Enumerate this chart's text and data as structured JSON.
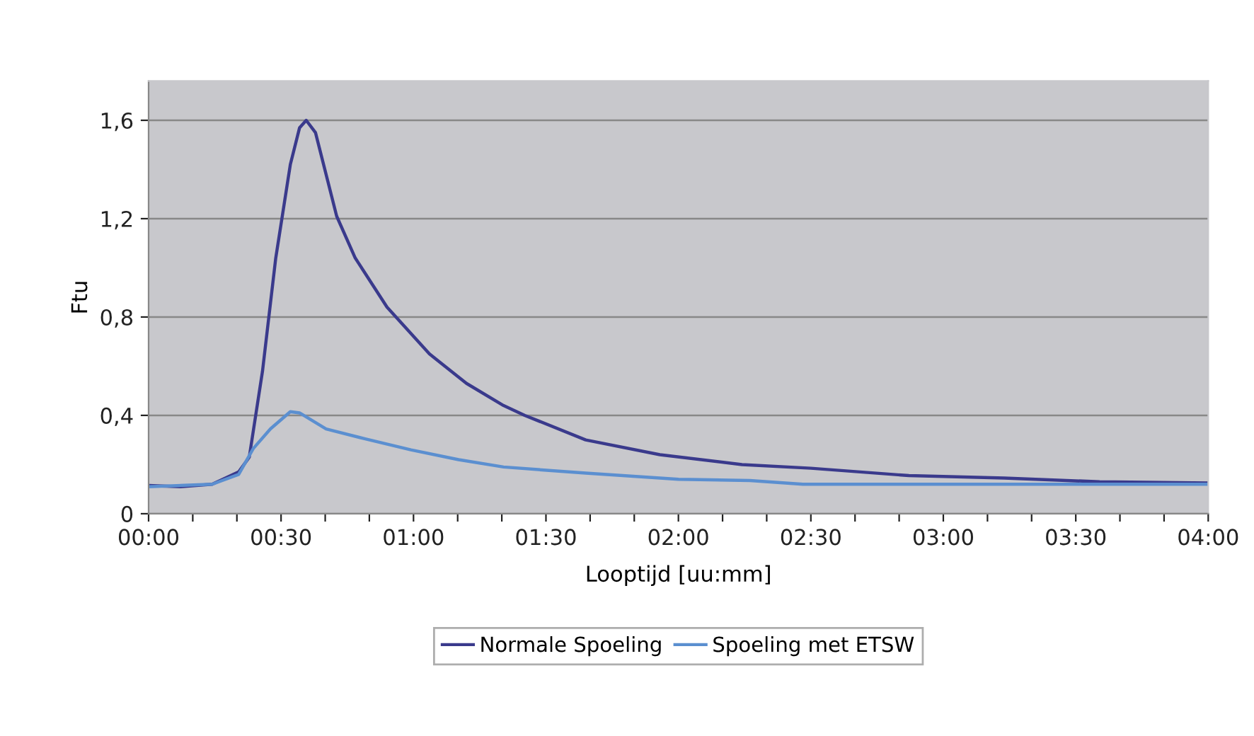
{
  "chart_data": {
    "type": "line",
    "xlabel": "Looptijd [uu:mm]",
    "ylabel": "Ftu",
    "xlim": [
      0,
      4
    ],
    "ylim": [
      0,
      1.76
    ],
    "xticks": [
      {
        "value": 0,
        "label": "00:00"
      },
      {
        "value": 0.1667,
        "label": null
      },
      {
        "value": 0.3333,
        "label": null
      },
      {
        "value": 0.5,
        "label": "00:30"
      },
      {
        "value": 0.6667,
        "label": null
      },
      {
        "value": 0.8333,
        "label": null
      },
      {
        "value": 1,
        "label": "01:00"
      },
      {
        "value": 1.1667,
        "label": null
      },
      {
        "value": 1.3333,
        "label": null
      },
      {
        "value": 1.5,
        "label": "01:30"
      },
      {
        "value": 1.6667,
        "label": null
      },
      {
        "value": 1.8333,
        "label": null
      },
      {
        "value": 2,
        "label": "02:00"
      },
      {
        "value": 2.1667,
        "label": null
      },
      {
        "value": 2.3333,
        "label": null
      },
      {
        "value": 2.5,
        "label": "02:30"
      },
      {
        "value": 2.6667,
        "label": null
      },
      {
        "value": 2.8333,
        "label": null
      },
      {
        "value": 3,
        "label": "03:00"
      },
      {
        "value": 3.1667,
        "label": null
      },
      {
        "value": 3.3333,
        "label": null
      },
      {
        "value": 3.5,
        "label": "03:30"
      },
      {
        "value": 3.6667,
        "label": null
      },
      {
        "value": 3.8333,
        "label": null
      },
      {
        "value": 4,
        "label": "04:00"
      }
    ],
    "yticks": [
      0,
      {
        "value": 0.4,
        "label": "0,4"
      },
      {
        "value": 0.8,
        "label": "0,8"
      },
      {
        "value": 1.2,
        "label": "1,2"
      },
      {
        "value": 1.6,
        "label": "1,6"
      }
    ],
    "grid": "y",
    "legend": "bottom",
    "marker": "none",
    "line_style": "solid",
    "series": [
      {
        "name": "Normale Spoeling",
        "color": "#3a3a8c",
        "x": [
          0,
          0.12,
          0.24,
          0.34,
          0.38,
          0.43,
          0.48,
          0.535,
          0.57,
          0.595,
          0.63,
          0.71,
          0.78,
          0.9,
          1.06,
          1.2,
          1.34,
          1.42,
          1.65,
          1.93,
          2.24,
          2.5,
          2.87,
          3.23,
          3.59,
          4.0
        ],
        "values": [
          0.115,
          0.11,
          0.12,
          0.17,
          0.23,
          0.58,
          1.04,
          1.42,
          1.57,
          1.6,
          1.55,
          1.21,
          1.04,
          0.84,
          0.65,
          0.53,
          0.44,
          0.4,
          0.3,
          0.24,
          0.2,
          0.185,
          0.155,
          0.145,
          0.13,
          0.125
        ]
      },
      {
        "name": "Spoeling met ETSW",
        "color": "#5b8fd0",
        "x": [
          0,
          0.24,
          0.34,
          0.395,
          0.46,
          0.535,
          0.57,
          0.67,
          0.815,
          0.99,
          1.17,
          1.34,
          1.65,
          2.0,
          2.27,
          2.47,
          3.1,
          4.0
        ],
        "values": [
          0.11,
          0.12,
          0.16,
          0.265,
          0.345,
          0.415,
          0.41,
          0.345,
          0.305,
          0.26,
          0.22,
          0.19,
          0.165,
          0.14,
          0.135,
          0.12,
          0.12,
          0.12
        ]
      }
    ]
  }
}
